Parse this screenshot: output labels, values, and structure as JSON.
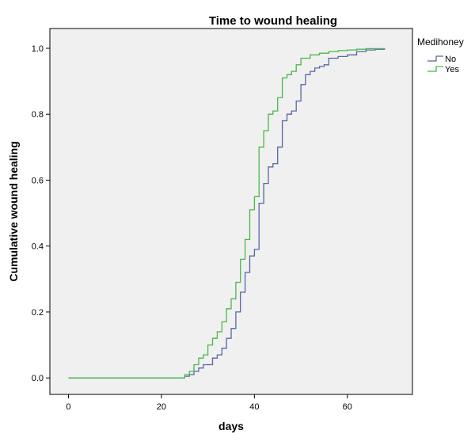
{
  "chart_data": {
    "type": "line",
    "step": true,
    "title": "Time to wound healing",
    "xlabel": "days",
    "ylabel": "Cumulative wound healing",
    "xlim": [
      -4,
      74
    ],
    "ylim": [
      -0.05,
      1.06
    ],
    "xticks": [
      0,
      20,
      40,
      60
    ],
    "yticks": [
      0.0,
      0.2,
      0.4,
      0.6,
      0.8,
      1.0
    ],
    "ytick_labels": [
      "0.0",
      "0.2",
      "0.4",
      "0.6",
      "0.8",
      "1.0"
    ],
    "grid": false,
    "legend": {
      "title": "Medihoney",
      "position": "right"
    },
    "series": [
      {
        "name": "No",
        "color": "#5865a8",
        "x": [
          0,
          25,
          26,
          27,
          28,
          29,
          31,
          32,
          33,
          34,
          35,
          36,
          37,
          38,
          39,
          40,
          41,
          42,
          43,
          44,
          45,
          46,
          47,
          48,
          49,
          50,
          51,
          52,
          53,
          54,
          55,
          56,
          58,
          60,
          62,
          64,
          66,
          68
        ],
        "y": [
          0,
          0.005,
          0.01,
          0.02,
          0.03,
          0.04,
          0.06,
          0.07,
          0.09,
          0.12,
          0.15,
          0.2,
          0.26,
          0.32,
          0.37,
          0.39,
          0.53,
          0.59,
          0.64,
          0.65,
          0.7,
          0.78,
          0.8,
          0.81,
          0.84,
          0.89,
          0.92,
          0.93,
          0.94,
          0.945,
          0.95,
          0.97,
          0.975,
          0.98,
          0.99,
          0.995,
          0.997,
          1.0
        ]
      },
      {
        "name": "Yes",
        "color": "#4bb84b",
        "x": [
          0,
          25,
          26,
          27,
          28,
          29,
          30,
          31,
          32,
          33,
          34,
          35,
          36,
          37,
          38,
          39,
          40,
          41,
          42,
          43,
          44,
          45,
          46,
          47,
          48,
          49,
          50,
          52,
          54,
          56,
          58,
          60,
          62,
          64,
          68
        ],
        "y": [
          0,
          0.01,
          0.02,
          0.04,
          0.06,
          0.07,
          0.1,
          0.12,
          0.14,
          0.17,
          0.21,
          0.24,
          0.29,
          0.36,
          0.42,
          0.51,
          0.55,
          0.7,
          0.75,
          0.8,
          0.81,
          0.85,
          0.91,
          0.92,
          0.93,
          0.95,
          0.97,
          0.98,
          0.985,
          0.99,
          0.993,
          0.995,
          0.997,
          0.999,
          1.0
        ]
      }
    ]
  }
}
